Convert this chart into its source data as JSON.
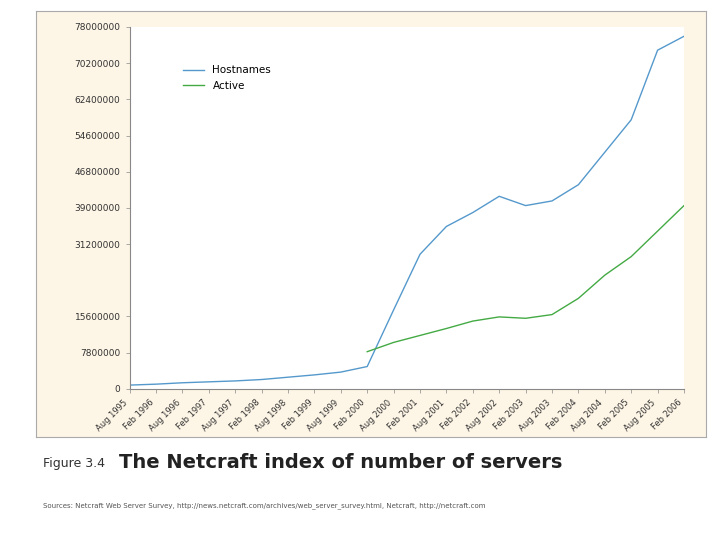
{
  "title": "The Netcraft index of number of servers",
  "figure_label": "Figure 3.4",
  "source_text": "Sources: Netcraft Web Server Survey, http://news.netcraft.com/archives/web_server_survey.html, Netcraft, http://netcraft.com",
  "background_color": "#ffffff",
  "panel_color": "#fdf5e6",
  "plot_bg_color": "#ffffff",
  "hostname_color": "#5599cc",
  "active_color": "#44aa44",
  "legend_labels": [
    "Hostnames",
    "Active"
  ],
  "yticks": [
    0,
    7800000,
    15600000,
    31200000,
    39000000,
    46800000,
    54600000,
    62400000,
    70200000,
    78000000
  ],
  "ytick_labels": [
    "0",
    "7800000",
    "15600000",
    "31200000",
    "39000000",
    "46800000",
    "54600000",
    "62400000",
    "70200000",
    "78000000"
  ],
  "xtick_labels": [
    "Aug 1995",
    "Feb 1996",
    "Aug 1996",
    "Feb 1997",
    "Aug 1997",
    "Feb 1998",
    "Aug 1998",
    "Feb 1999",
    "Aug 1999",
    "Feb 2000",
    "Aug 2000",
    "Feb 2001",
    "Aug 2001",
    "Feb 2002",
    "Aug 2002",
    "Feb 2003",
    "Aug 2003",
    "Feb 2004",
    "Aug 2004",
    "Feb 2005",
    "Aug 2005",
    "Feb 2006"
  ],
  "hostnames_data": [
    [
      0,
      800000
    ],
    [
      1,
      1000000
    ],
    [
      2,
      1300000
    ],
    [
      3,
      1500000
    ],
    [
      4,
      1700000
    ],
    [
      5,
      2000000
    ],
    [
      6,
      2500000
    ],
    [
      7,
      3000000
    ],
    [
      8,
      3600000
    ],
    [
      9,
      4800000
    ],
    [
      10,
      17000000
    ],
    [
      11,
      29000000
    ],
    [
      12,
      35000000
    ],
    [
      13,
      38000000
    ],
    [
      14,
      41500000
    ],
    [
      15,
      39500000
    ],
    [
      16,
      40500000
    ],
    [
      17,
      44000000
    ],
    [
      18,
      51000000
    ],
    [
      19,
      58000000
    ],
    [
      20,
      73000000
    ],
    [
      21,
      76000000
    ]
  ],
  "active_data": [
    [
      9,
      8000000
    ],
    [
      10,
      10000000
    ],
    [
      11,
      11500000
    ],
    [
      12,
      13000000
    ],
    [
      13,
      14600000
    ],
    [
      14,
      15500000
    ],
    [
      15,
      15200000
    ],
    [
      16,
      16000000
    ],
    [
      17,
      19500000
    ],
    [
      18,
      24500000
    ],
    [
      19,
      28500000
    ],
    [
      20,
      34000000
    ],
    [
      21,
      39500000
    ]
  ]
}
